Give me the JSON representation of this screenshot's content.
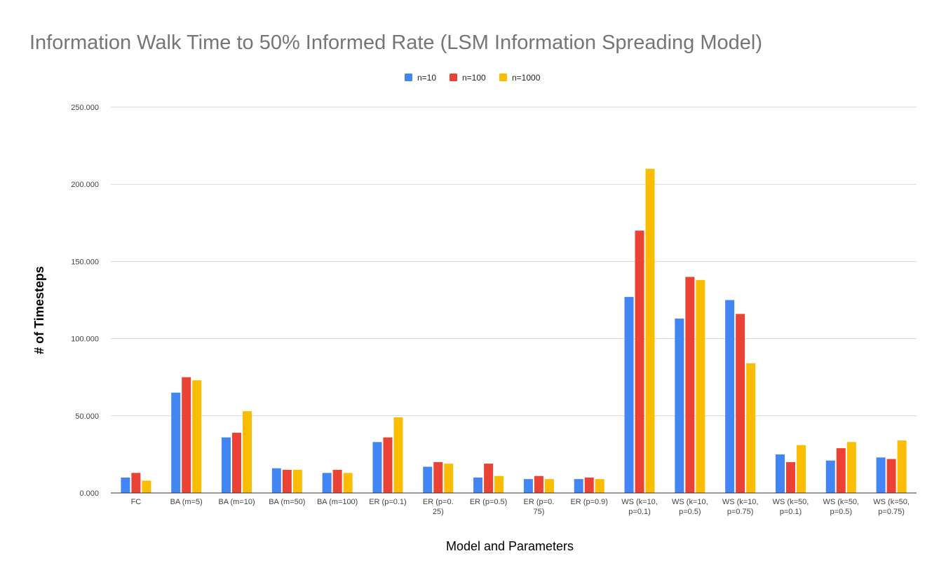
{
  "chart_data": {
    "type": "bar",
    "title": "Information Walk Time to 50% Informed Rate (LSM Information Spreading Model)",
    "xlabel": "Model and Parameters",
    "ylabel": "# of Timesteps",
    "ylim": [
      0,
      250
    ],
    "yticks": [
      0,
      50,
      100,
      150,
      200,
      250
    ],
    "ytick_labels": [
      "0.000",
      "50.000",
      "100.000",
      "150.000",
      "200.000",
      "250.000"
    ],
    "grid": true,
    "legend_position": "top-center",
    "categories": [
      "FC",
      "BA (m=5)",
      "BA (m=10)",
      "BA (m=50)",
      "BA (m=100)",
      "ER (p=0.1)",
      "ER (p=0.25)",
      "ER (p=0.5)",
      "ER (p=0.75)",
      "ER (p=0.9)",
      "WS (k=10, p=0.1)",
      "WS (k=10, p=0.5)",
      "WS (k=10, p=0.75)",
      "WS (k=50, p=0.1)",
      "WS (k=50, p=0.5)",
      "WS (k=50, p=0.75)"
    ],
    "category_label_lines": [
      [
        "FC"
      ],
      [
        "BA (m=5)"
      ],
      [
        "BA (m=10)"
      ],
      [
        "BA (m=50)"
      ],
      [
        "BA (m=100)"
      ],
      [
        "ER (p=0.1)"
      ],
      [
        "ER (p=0.",
        "25)"
      ],
      [
        "ER (p=0.5)"
      ],
      [
        "ER (p=0.",
        "75)"
      ],
      [
        "ER (p=0.9)"
      ],
      [
        "WS (k=10,",
        "p=0.1)"
      ],
      [
        "WS (k=10,",
        "p=0.5)"
      ],
      [
        "WS (k=10,",
        "p=0.75)"
      ],
      [
        "WS (k=50,",
        "p=0.1)"
      ],
      [
        "WS (k=50,",
        "p=0.5)"
      ],
      [
        "WS (k=50,",
        "p=0.75)"
      ]
    ],
    "series": [
      {
        "name": "n=10",
        "color": "#4285F4",
        "values": [
          10,
          65,
          36,
          16,
          13,
          33,
          17,
          10,
          9,
          9,
          127,
          113,
          125,
          25,
          21,
          23
        ]
      },
      {
        "name": "n=100",
        "color": "#EA4335",
        "values": [
          13,
          75,
          39,
          15,
          15,
          36,
          20,
          19,
          11,
          10,
          170,
          140,
          116,
          20,
          29,
          22
        ]
      },
      {
        "name": "n=1000",
        "color": "#FBBC04",
        "values": [
          8,
          73,
          53,
          15,
          13,
          49,
          19,
          11,
          9,
          9,
          210,
          138,
          84,
          31,
          33,
          34
        ]
      }
    ]
  }
}
